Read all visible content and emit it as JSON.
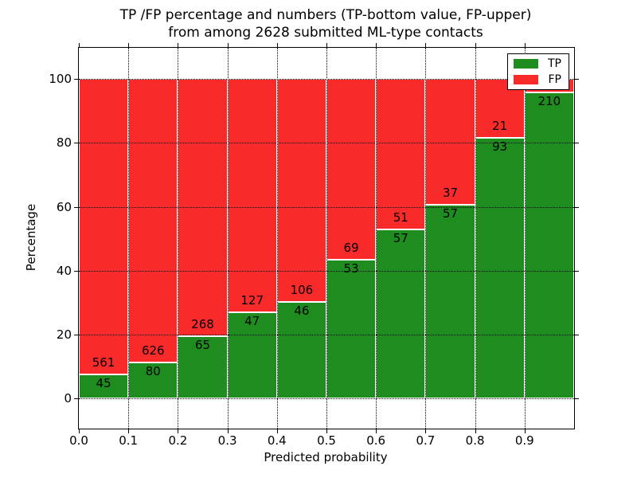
{
  "figure": {
    "title_line1": "TP /FP percentage and numbers (TP-bottom value, FP-upper)",
    "title_line2": "from among 2628 submitted ML-type contacts",
    "xlabel": "Predicted probability",
    "ylabel": "Percentage"
  },
  "legend": {
    "items": [
      {
        "label": "TP",
        "color": "#1e8c1e"
      },
      {
        "label": "FP",
        "color": "#f92a2a"
      }
    ]
  },
  "chart_data": {
    "type": "bar",
    "stacked": true,
    "title": "TP /FP percentage and numbers (TP-bottom value, FP-upper) from among 2628 submitted ML-type contacts",
    "xlabel": "Predicted probability",
    "ylabel": "Percentage",
    "total_mentioned_in_title": 2628,
    "bin_width": 0.1,
    "x_bin_starts": [
      0.0,
      0.1,
      0.2,
      0.3,
      0.4,
      0.5,
      0.6,
      0.7,
      0.8,
      0.9
    ],
    "series": [
      {
        "name": "TP",
        "color": "#1e8c1e",
        "counts": [
          45,
          80,
          65,
          47,
          46,
          53,
          57,
          57,
          93,
          210
        ],
        "pct": [
          7.4,
          11.3,
          19.5,
          27.0,
          30.3,
          43.4,
          52.8,
          60.6,
          81.6,
          95.9
        ]
      },
      {
        "name": "FP",
        "color": "#f92a2a",
        "count_labels": [
          561,
          626,
          268,
          127,
          106,
          69,
          51,
          37,
          21,
          null
        ],
        "pct": [
          92.6,
          88.7,
          80.5,
          73.0,
          69.7,
          56.6,
          47.2,
          39.4,
          18.4,
          4.1
        ]
      }
    ],
    "bars_top_at": 100,
    "xticks": [
      "0.0",
      "0.1",
      "0.2",
      "0.3",
      "0.4",
      "0.5",
      "0.6",
      "0.7",
      "0.8",
      "0.9"
    ],
    "yticks": [
      0,
      20,
      40,
      60,
      80,
      100
    ],
    "xlim": [
      0,
      1
    ],
    "ylim": [
      -9.5,
      109.8
    ],
    "grid": true,
    "grid_style": "dotted",
    "legend_position": "upper right"
  }
}
